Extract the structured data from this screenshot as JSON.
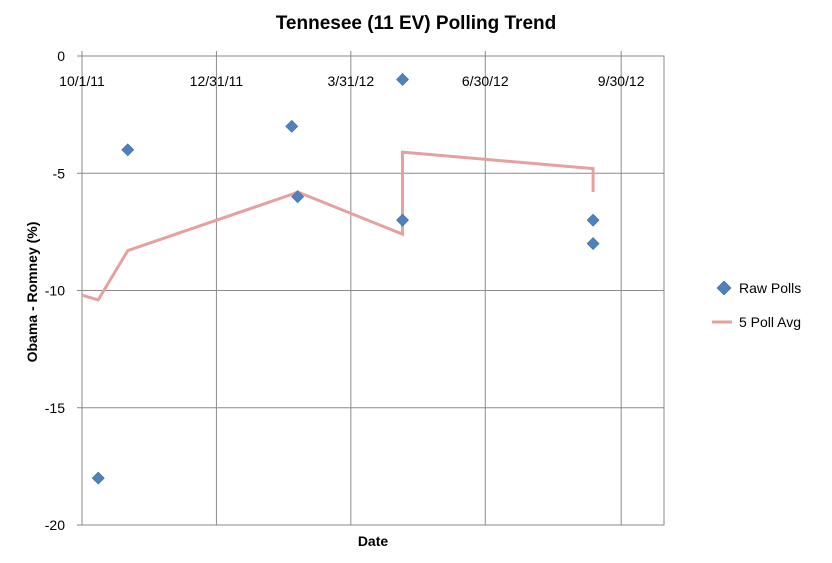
{
  "chart_data": {
    "type": "scatter",
    "title": "Tennesee (11 EV) Polling Trend",
    "xlabel": "Date",
    "ylabel": "Obama - Romney (%)",
    "xlim": [
      "2011-10-01",
      "2012-10-29"
    ],
    "ylim": [
      -20,
      0
    ],
    "x_ticks": [
      {
        "date": "2011-10-01",
        "label": "10/1/11"
      },
      {
        "date": "2011-12-31",
        "label": "12/31/11"
      },
      {
        "date": "2012-03-31",
        "label": "3/31/12"
      },
      {
        "date": "2012-06-30",
        "label": "6/30/12"
      },
      {
        "date": "2012-09-30",
        "label": "9/30/12"
      }
    ],
    "y_ticks": [
      0,
      -5,
      -10,
      -15,
      -20
    ],
    "grid": true,
    "legend_position": "right",
    "series": [
      {
        "name": "Raw Polls",
        "kind": "scatter",
        "marker": "diamond",
        "color": "#4f81bd",
        "points": [
          {
            "x": "2011-10-12",
            "y": -18
          },
          {
            "x": "2011-11-01",
            "y": -4
          },
          {
            "x": "2012-02-20",
            "y": -3
          },
          {
            "x": "2012-02-24",
            "y": -6
          },
          {
            "x": "2012-05-05",
            "y": -1
          },
          {
            "x": "2012-05-05",
            "y": -7
          },
          {
            "x": "2012-09-11",
            "y": -7
          },
          {
            "x": "2012-09-11",
            "y": -8
          }
        ]
      },
      {
        "name": "5 Poll Avg",
        "kind": "line",
        "color": "#e6a0a0",
        "points": [
          {
            "x": "2011-10-01",
            "y": -10.2
          },
          {
            "x": "2011-10-12",
            "y": -10.4
          },
          {
            "x": "2011-11-01",
            "y": -8.3
          },
          {
            "x": "2012-02-20",
            "y": -5.9
          },
          {
            "x": "2012-02-24",
            "y": -5.8
          },
          {
            "x": "2012-05-05",
            "y": -7.6
          },
          {
            "x": "2012-05-05",
            "y": -4.1
          },
          {
            "x": "2012-09-11",
            "y": -4.8
          },
          {
            "x": "2012-09-11",
            "y": -5.8
          }
        ]
      }
    ]
  }
}
